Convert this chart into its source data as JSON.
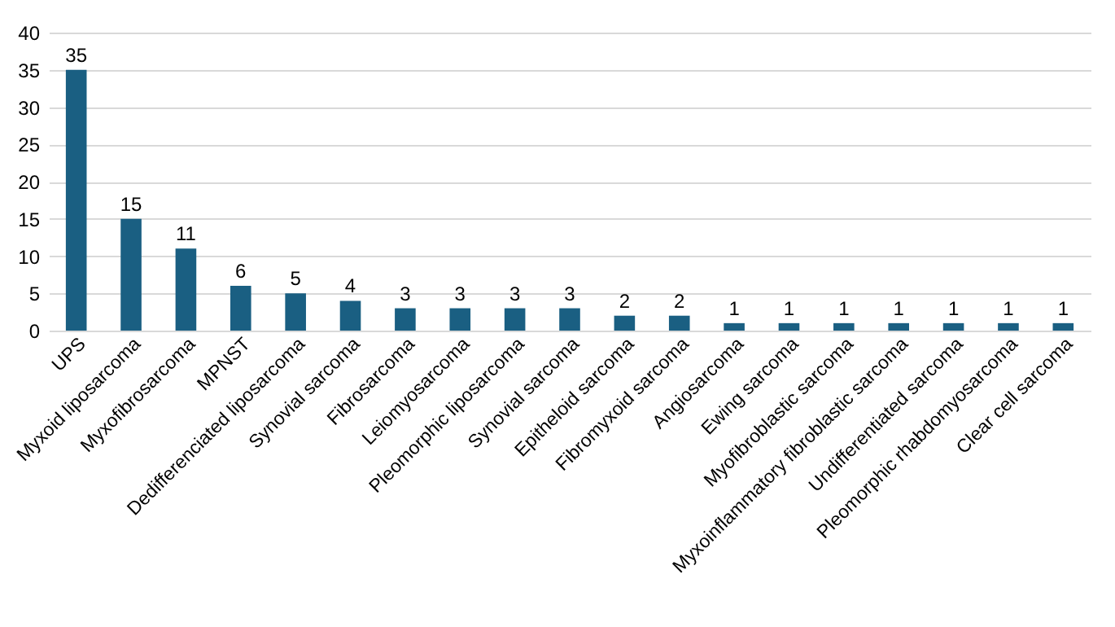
{
  "chart_data": {
    "type": "bar",
    "categories": [
      "UPS",
      "Myxoid liposarcoma",
      "Myxofibrosarcoma",
      "MPNST",
      "Dedifferenciated liposarcoma",
      "Synovial sarcoma",
      "Fibrosarcoma",
      "Leiomyosarcoma",
      "Pleomorphic liposarcoma",
      "Synovial sarcoma",
      "Epitheloid sarcoma",
      "Fibromyxoid sarcoma",
      "Angiosarcoma",
      "Ewing sarcoma",
      "Myofibroblastic sarcoma",
      "Myxoinflammatory fibroblastic sarcoma",
      "Undifferentiated sarcoma",
      "Pleomorphic rhabdomyosarcoma",
      "Clear cell sarcoma"
    ],
    "values": [
      35,
      15,
      11,
      6,
      5,
      4,
      3,
      3,
      3,
      3,
      2,
      2,
      1,
      1,
      1,
      1,
      1,
      1,
      1
    ],
    "color": "#1a5f82",
    "ylim": [
      0,
      40
    ],
    "yticks": [
      0,
      5,
      10,
      15,
      20,
      25,
      30,
      35,
      40
    ],
    "grid": "y",
    "data_labels": true
  }
}
